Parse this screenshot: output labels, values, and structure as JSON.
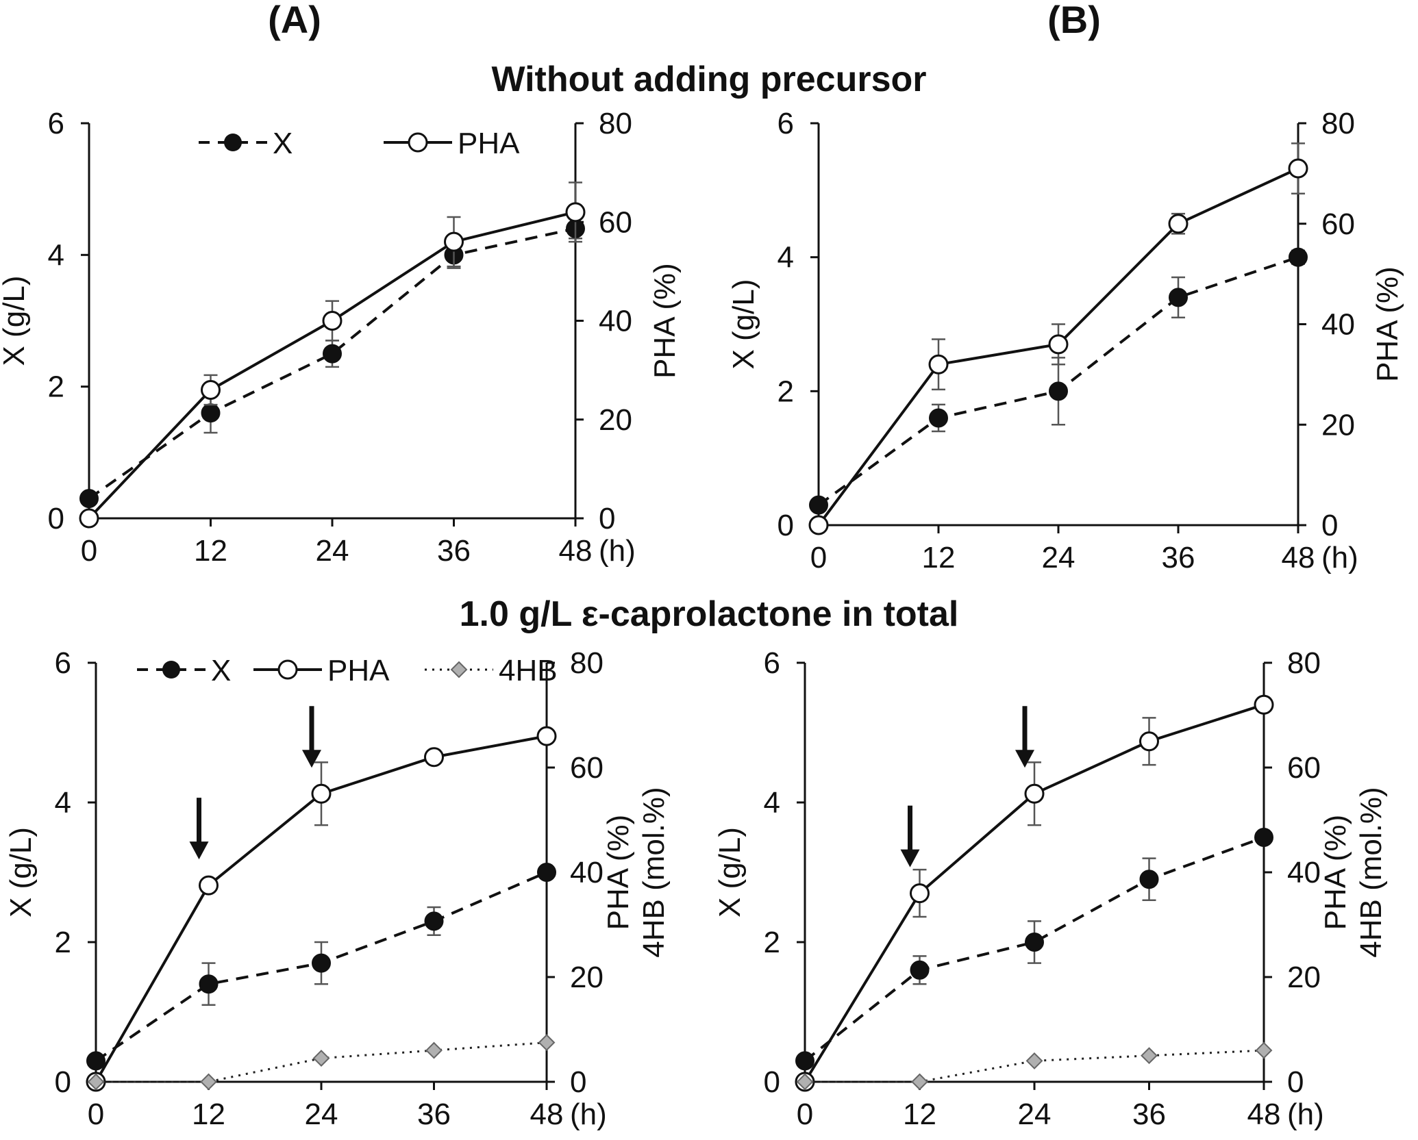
{
  "figure": {
    "panel_labels": [
      "(A)",
      "(B)"
    ],
    "section_titles": [
      "Without adding precursor",
      "1.0 g/L ε-caprolactone in total"
    ]
  },
  "chart_data": [
    {
      "id": "top-left",
      "type": "line",
      "section": "Without adding precursor",
      "panel": "(A)",
      "x": [
        0,
        12,
        24,
        36,
        48
      ],
      "x_ticks": [
        "0",
        "12",
        "24",
        "36",
        "48"
      ],
      "x_unit": "(h)",
      "ylabel_left": "X (g/L)",
      "ylim_left": [
        0,
        6
      ],
      "yticks_left": [
        "0",
        "2",
        "4",
        "6"
      ],
      "ylabel_right": [
        "PHA (%)"
      ],
      "ylim_right": [
        0,
        80
      ],
      "yticks_right": [
        "0",
        "20",
        "40",
        "60",
        "80"
      ],
      "legend": [
        "X",
        "PHA"
      ],
      "series": [
        {
          "name": "X",
          "axis": "left",
          "style": "dashed",
          "marker": "filled-circle",
          "values": [
            0.3,
            1.6,
            2.5,
            4.0,
            4.4
          ],
          "errors": [
            0,
            0.3,
            0.2,
            0.2,
            0.15
          ]
        },
        {
          "name": "PHA",
          "axis": "right",
          "style": "solid",
          "marker": "open-circle",
          "values": [
            0,
            26,
            40,
            56,
            62
          ],
          "errors": [
            0,
            3,
            4,
            5,
            6
          ]
        }
      ],
      "arrows_x": []
    },
    {
      "id": "top-right",
      "type": "line",
      "section": "Without adding precursor",
      "panel": "(B)",
      "x": [
        0,
        12,
        24,
        36,
        48
      ],
      "x_ticks": [
        "0",
        "12",
        "24",
        "36",
        "48"
      ],
      "x_unit": "(h)",
      "ylabel_left": "X (g/L)",
      "ylim_left": [
        0,
        6
      ],
      "yticks_left": [
        "0",
        "2",
        "4",
        "6"
      ],
      "ylabel_right": [
        "PHA (%)"
      ],
      "ylim_right": [
        0,
        80
      ],
      "yticks_right": [
        "0",
        "20",
        "40",
        "60",
        "80"
      ],
      "legend": [],
      "series": [
        {
          "name": "X",
          "axis": "left",
          "style": "dashed",
          "marker": "filled-circle",
          "values": [
            0.3,
            1.6,
            2.0,
            3.4,
            4.0
          ],
          "errors": [
            0,
            0.2,
            0.5,
            0.3,
            0.1
          ]
        },
        {
          "name": "PHA",
          "axis": "right",
          "style": "solid",
          "marker": "open-circle",
          "values": [
            0,
            32,
            36,
            60,
            71
          ],
          "errors": [
            0,
            5,
            4,
            2,
            5
          ]
        }
      ],
      "arrows_x": []
    },
    {
      "id": "bottom-left",
      "type": "line",
      "section": "1.0 g/L ε-caprolactone in total",
      "panel": "(A)",
      "x": [
        0,
        12,
        24,
        36,
        48
      ],
      "x_ticks": [
        "0",
        "12",
        "24",
        "36",
        "48"
      ],
      "x_unit": "(h)",
      "ylabel_left": "X (g/L)",
      "ylim_left": [
        0,
        6
      ],
      "yticks_left": [
        "0",
        "2",
        "4",
        "6"
      ],
      "ylabel_right": [
        "PHA (%)",
        "4HB (mol.%)"
      ],
      "ylim_right": [
        0,
        80
      ],
      "yticks_right": [
        "0",
        "20",
        "40",
        "60",
        "80"
      ],
      "legend": [
        "X",
        "PHA",
        "4HB"
      ],
      "series": [
        {
          "name": "X",
          "axis": "left",
          "style": "dashed",
          "marker": "filled-circle",
          "values": [
            0.3,
            1.4,
            1.7,
            2.3,
            3.0
          ],
          "errors": [
            0,
            0.3,
            0.3,
            0.2,
            0
          ]
        },
        {
          "name": "PHA",
          "axis": "right",
          "style": "solid",
          "marker": "open-circle",
          "values": [
            0,
            37.5,
            55,
            62,
            66
          ],
          "errors": [
            0,
            0,
            6,
            0,
            0
          ]
        },
        {
          "name": "4HB",
          "axis": "right",
          "style": "dotted",
          "marker": "gray-diamond",
          "values": [
            0,
            0,
            4.5,
            6,
            7.5
          ],
          "errors": [
            0,
            0,
            0,
            0,
            0
          ]
        }
      ],
      "arrows_x": [
        12,
        24
      ]
    },
    {
      "id": "bottom-right",
      "type": "line",
      "section": "1.0 g/L ε-caprolactone in total",
      "panel": "(B)",
      "x": [
        0,
        12,
        24,
        36,
        48
      ],
      "x_ticks": [
        "0",
        "12",
        "24",
        "36",
        "48"
      ],
      "x_unit": "(h)",
      "ylabel_left": "X (g/L)",
      "ylim_left": [
        0,
        6
      ],
      "yticks_left": [
        "0",
        "2",
        "4",
        "6"
      ],
      "ylabel_right": [
        "PHA (%)",
        "4HB (mol.%)"
      ],
      "ylim_right": [
        0,
        80
      ],
      "yticks_right": [
        "0",
        "20",
        "40",
        "60",
        "80"
      ],
      "legend": [],
      "series": [
        {
          "name": "X",
          "axis": "left",
          "style": "dashed",
          "marker": "filled-circle",
          "values": [
            0.3,
            1.6,
            2.0,
            2.9,
            3.5
          ],
          "errors": [
            0,
            0.2,
            0.3,
            0.3,
            0
          ]
        },
        {
          "name": "PHA",
          "axis": "right",
          "style": "solid",
          "marker": "open-circle",
          "values": [
            0,
            36,
            55,
            65,
            72
          ],
          "errors": [
            0,
            4.5,
            6,
            4.5,
            0
          ]
        },
        {
          "name": "4HB",
          "axis": "right",
          "style": "dotted",
          "marker": "gray-diamond",
          "values": [
            0,
            0,
            4,
            5,
            6
          ],
          "errors": [
            0,
            0,
            0,
            0,
            0
          ]
        }
      ],
      "arrows_x": [
        12,
        24
      ]
    }
  ]
}
